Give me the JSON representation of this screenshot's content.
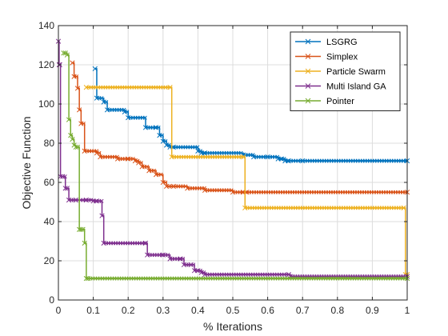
{
  "chart_data": {
    "type": "line",
    "xlabel": "% Iterations",
    "ylabel": "Objective Function",
    "xlim": [
      0,
      1
    ],
    "ylim": [
      0,
      140
    ],
    "x_ticks": [
      0,
      0.1,
      0.2,
      0.3,
      0.4,
      0.5,
      0.6,
      0.7,
      0.8,
      0.9,
      1
    ],
    "x_tick_labels": [
      "0",
      "0.1",
      "0.2",
      "0.3",
      "0.4",
      "0.5",
      "0.6",
      "0.7",
      "0.8",
      "0.9",
      "1"
    ],
    "y_ticks": [
      0,
      20,
      40,
      60,
      80,
      100,
      120,
      140
    ],
    "y_tick_labels": [
      "0",
      "20",
      "40",
      "60",
      "80",
      "100",
      "120",
      "140"
    ],
    "grid": true,
    "legend_position": "top-right",
    "series": [
      {
        "name": "LSGRG",
        "color": "#0072BD",
        "x": [
          0.105,
          0.11,
          0.13,
          0.14,
          0.19,
          0.2,
          0.25,
          0.28,
          0.29,
          0.3,
          0.31,
          0.32,
          0.33,
          0.4,
          0.41,
          0.42,
          0.53,
          0.56,
          0.6,
          0.63,
          0.64,
          0.65,
          0.66,
          0.7,
          1.0
        ],
        "y": [
          118,
          103,
          101,
          97,
          96,
          93,
          88,
          88,
          84,
          81,
          79,
          78,
          78,
          76,
          75,
          75,
          74,
          73,
          73,
          72,
          72,
          71,
          71,
          71,
          71
        ]
      },
      {
        "name": "Simplex",
        "color": "#D95319",
        "x": [
          0.04,
          0.045,
          0.055,
          0.06,
          0.065,
          0.075,
          0.11,
          0.12,
          0.17,
          0.2,
          0.22,
          0.23,
          0.24,
          0.26,
          0.28,
          0.3,
          0.31,
          0.33,
          0.37,
          0.42,
          0.5,
          0.53,
          0.54,
          1.0
        ],
        "y": [
          121,
          114,
          108,
          97,
          90,
          76,
          75,
          73,
          72,
          72,
          71,
          70,
          68,
          66,
          64,
          60,
          58,
          58,
          57,
          56,
          55,
          55,
          55,
          55
        ]
      },
      {
        "name": "Particle Swarm",
        "color": "#EDB120",
        "x": [
          0.08,
          0.32,
          0.325,
          0.53,
          0.535,
          0.99,
          0.995,
          1.0
        ],
        "y": [
          108.5,
          108.5,
          73,
          73,
          47,
          47,
          13,
          13
        ]
      },
      {
        "name": "Multi Island GA",
        "color": "#7E2F8E",
        "x": [
          0,
          0.002,
          0.004,
          0.006,
          0.012,
          0.02,
          0.025,
          0.03,
          0.05,
          0.08,
          0.1,
          0.11,
          0.125,
          0.13,
          0.25,
          0.255,
          0.3,
          0.32,
          0.35,
          0.36,
          0.38,
          0.39,
          0.4,
          0.41,
          0.42,
          0.66,
          0.665,
          1.0
        ],
        "y": [
          132,
          120,
          120,
          63,
          63,
          57,
          57,
          51,
          51,
          51,
          50.5,
          50.5,
          43,
          29,
          29,
          23,
          23,
          21,
          21,
          18,
          18,
          15,
          15,
          14,
          13,
          13,
          12,
          12
        ]
      },
      {
        "name": "Pointer",
        "color": "#77AC30",
        "x": [
          0.015,
          0.02,
          0.025,
          0.03,
          0.035,
          0.04,
          0.045,
          0.05,
          0.055,
          0.06,
          0.065,
          0.07,
          0.075,
          0.08,
          0.085,
          1.0
        ],
        "y": [
          126,
          126,
          125,
          92,
          84,
          82,
          79,
          78,
          78,
          36,
          36,
          36,
          29,
          11,
          11,
          11
        ]
      }
    ]
  }
}
